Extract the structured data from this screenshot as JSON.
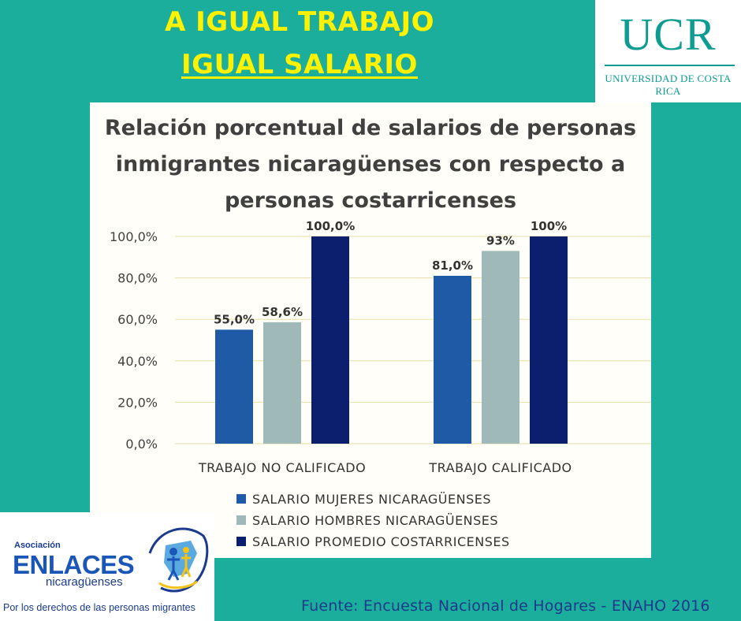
{
  "headline": {
    "line1": "A IGUAL TRABAJO",
    "line2": "IGUAL SALARIO"
  },
  "ucr_logo": {
    "main": "UCR",
    "sub": "UNIVERSIDAD DE COSTA RICA"
  },
  "enlaces_logo": {
    "asociacion": "Asociación",
    "name": "ENLACES",
    "sub": "nicaragüenses",
    "tagline": "Por los derechos de las personas migrantes"
  },
  "source": "Fuente: Encuesta Nacional de Hogares - ENAHO 2016",
  "colors": {
    "background": "#1cae9c",
    "headline": "#fff200",
    "series": [
      "#1f5aa6",
      "#9fb8b8",
      "#0c1f6e"
    ]
  },
  "chart_data": {
    "type": "bar",
    "title_lines": [
      "Relación porcentual de salarios de personas",
      "inmigrantes nicaragüenses con respecto a",
      "personas costarricenses"
    ],
    "categories": [
      "TRABAJO NO CALIFICADO",
      "TRABAJO CALIFICADO"
    ],
    "series": [
      {
        "name": "SALARIO MUJERES NICARAGÜENSES",
        "values": [
          55.0,
          81.0
        ],
        "labels": [
          "55,0%",
          "81,0%"
        ],
        "color": "#1f5aa6"
      },
      {
        "name": "SALARIO HOMBRES NICARAGÜENSES",
        "values": [
          58.6,
          93.0
        ],
        "labels": [
          "58,6%",
          "93%"
        ],
        "color": "#9fb8b8"
      },
      {
        "name": "SALARIO PROMEDIO COSTARRICENSES",
        "values": [
          100.0,
          100.0
        ],
        "labels": [
          "100,0%",
          "100%"
        ],
        "color": "#0c1f6e"
      }
    ],
    "yticks": [
      "0,0%",
      "20,0%",
      "40,0%",
      "60,0%",
      "80,0%",
      "100,0%"
    ],
    "ytick_values": [
      0,
      20,
      40,
      60,
      80,
      100
    ],
    "ylim": [
      0,
      100
    ],
    "grid": true,
    "legend_position": "bottom"
  }
}
